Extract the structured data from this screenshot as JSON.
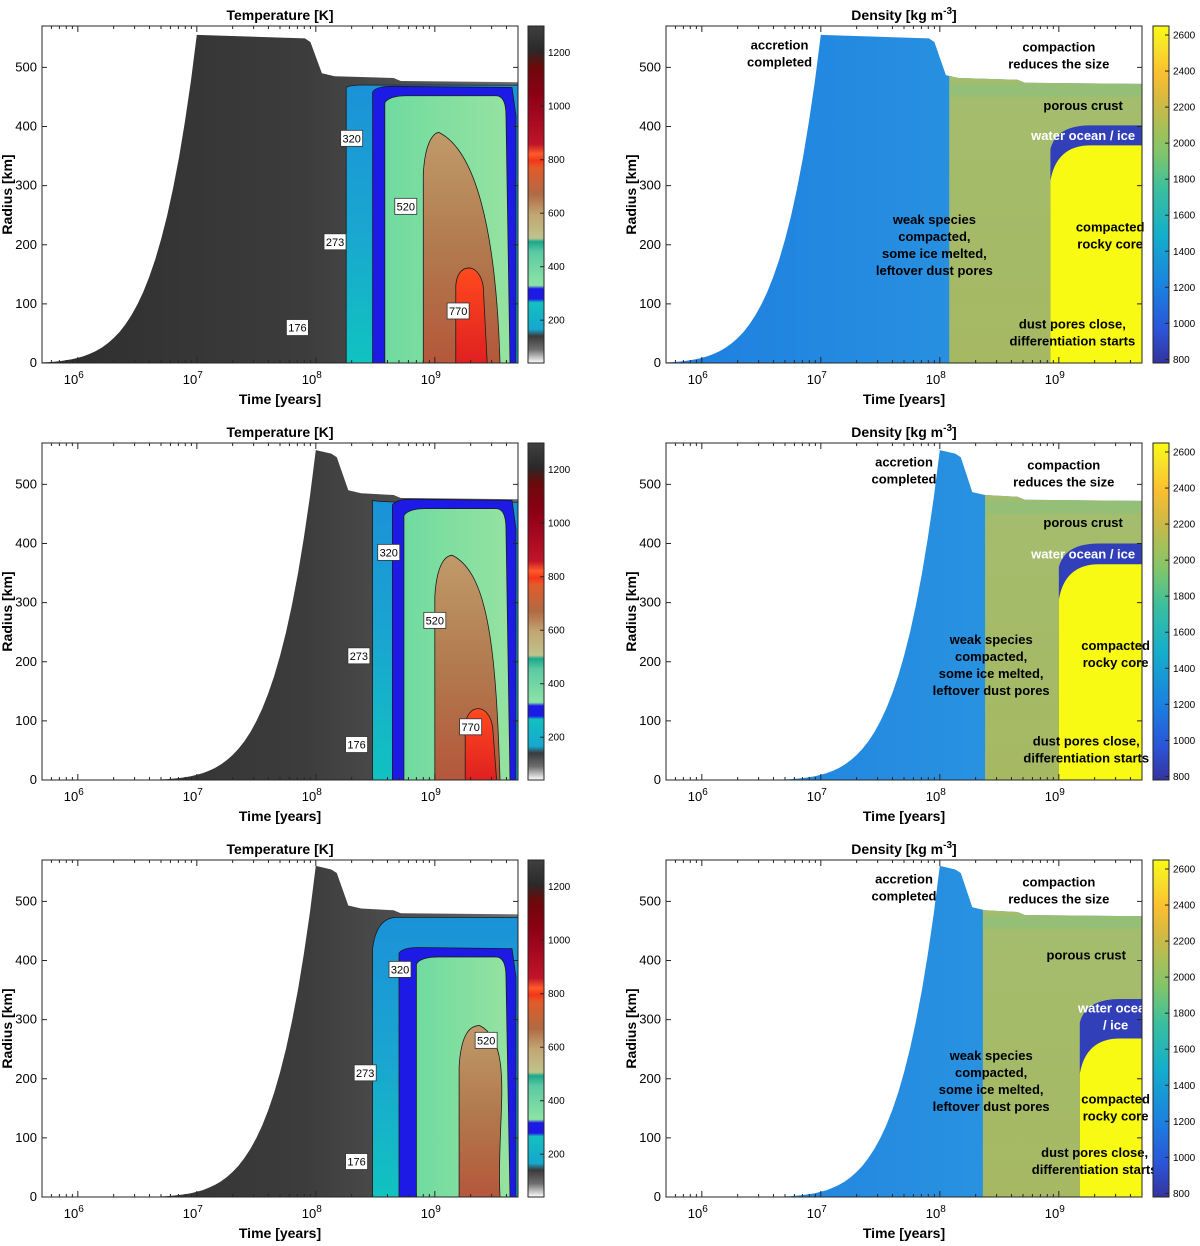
{
  "colors": {
    "density_core": "#f9fa14",
    "density_ocean": "#3140b8",
    "density_body": "#a4bd6c",
    "density_acc": "#1b78d8",
    "density_crust": "#8fc07a",
    "temp_dark": "#3a3a3a",
    "temp_cyan": "#17a7cf",
    "temp_blue": "#1d1ae6",
    "temp_green": "#8de3a6",
    "temp_tan": "#c3a572",
    "temp_brown": "#b06a44",
    "temp_red": "#f5341b"
  },
  "chart_data": [
    {
      "type": "heatmap",
      "title": "Temperature [K]",
      "xlabel": "Time [years]",
      "ylabel": "Radius [km]",
      "x_scale": "log",
      "xlim": [
        500000,
        5000000000
      ],
      "ylim": [
        0,
        570
      ],
      "xticks": [
        "10",
        "10",
        "10",
        "10"
      ],
      "xtick_exponents": [
        "6",
        "7",
        "8",
        "9"
      ],
      "xtick_values": [
        1000000,
        10000000,
        100000000,
        1000000000
      ],
      "yticks": [
        0,
        100,
        200,
        300,
        400,
        500
      ],
      "colorbar": {
        "range": [
          40,
          1300
        ],
        "ticks": [
          200,
          400,
          600,
          800,
          1000,
          1200
        ]
      },
      "accretion_end_years": 10000000,
      "initial_radius_km": 555,
      "final_radius_km": 475,
      "contours": [
        {
          "label": "176",
          "label_x": 70000000.0,
          "label_y": 60
        },
        {
          "label": "273",
          "label_x": 145000000.0,
          "label_y": 205
        },
        {
          "label": "320",
          "label_x": 200000000.0,
          "label_y": 380
        },
        {
          "label": "520",
          "label_x": 570000000.0,
          "label_y": 265
        },
        {
          "label": "770",
          "label_x": 1570000000.0,
          "label_y": 88
        }
      ],
      "regions": {
        "cyan_start": 180000000.0,
        "blue_start": 300000000.0,
        "green_start": 380000000.0,
        "shell_top": 458,
        "tan_start": 800000000.0,
        "tan_top": 390,
        "brown_start": 1000000000.0,
        "red_start": 1500000000.0,
        "red_top": 170
      }
    },
    {
      "type": "heatmap",
      "title": "Density [kg m",
      "title_exponent": "-3",
      "title_close": "]",
      "xlabel": "Time [years]",
      "ylabel": "Radius [km]",
      "x_scale": "log",
      "xlim": [
        500000,
        5000000000
      ],
      "ylim": [
        0,
        570
      ],
      "xticks": [
        "10",
        "10",
        "10",
        "10"
      ],
      "xtick_exponents": [
        "6",
        "7",
        "8",
        "9"
      ],
      "xtick_values": [
        1000000,
        10000000,
        100000000,
        1000000000
      ],
      "yticks": [
        0,
        100,
        200,
        300,
        400,
        500
      ],
      "colorbar": {
        "range": [
          780,
          2650
        ],
        "ticks": [
          800,
          1000,
          1200,
          1400,
          1600,
          1800,
          2000,
          2200,
          2400,
          2600
        ]
      },
      "accretion_end_years": 10000000,
      "initial_radius_km": 555,
      "final_radius_km": 472,
      "compaction_years": 120000000.0,
      "core_start_years": 850000000.0,
      "core_top_km": 368,
      "ocean_top_km": 402,
      "annotations": [
        {
          "lines": [
            "accretion",
            "completed"
          ],
          "x": 4500000.0,
          "y": 530
        },
        {
          "lines": [
            "compaction",
            "reduces the size"
          ],
          "x": 1000000000.0,
          "y": 527
        },
        {
          "lines": [
            "porous crust"
          ],
          "x": 1600000000.0,
          "y": 428
        },
        {
          "lines": [
            "water ocean / ice"
          ],
          "x": 1600000000.0,
          "y": 377,
          "white": true
        },
        {
          "lines": [
            "weak species",
            "compacted,",
            "some ice melted,",
            "leftover dust pores"
          ],
          "x": 90000000.0,
          "y": 235
        },
        {
          "lines": [
            "compacted",
            "rocky core"
          ],
          "x": 2700000000.0,
          "y": 222
        },
        {
          "lines": [
            "dust pores close,",
            "differentiation starts"
          ],
          "x": 1300000000.0,
          "y": 58
        }
      ]
    },
    {
      "type": "heatmap",
      "title": "Temperature [K]",
      "xlabel": "Time [years]",
      "ylabel": "Radius [km]",
      "x_scale": "log",
      "xlim": [
        500000,
        5000000000
      ],
      "ylim": [
        0,
        570
      ],
      "xticks": [
        "10",
        "10",
        "10",
        "10"
      ],
      "xtick_exponents": [
        "6",
        "7",
        "8",
        "9"
      ],
      "xtick_values": [
        1000000,
        10000000,
        100000000,
        1000000000
      ],
      "yticks": [
        0,
        100,
        200,
        300,
        400,
        500
      ],
      "colorbar": {
        "range": [
          40,
          1300
        ],
        "ticks": [
          200,
          400,
          600,
          800,
          1000,
          1200
        ]
      },
      "accretion_end_years": 100000000,
      "initial_radius_km": 558,
      "final_radius_km": 475,
      "contours": [
        {
          "label": "176",
          "label_x": 220000000.0,
          "label_y": 60
        },
        {
          "label": "273",
          "label_x": 230000000.0,
          "label_y": 210
        },
        {
          "label": "320",
          "label_x": 410000000.0,
          "label_y": 385
        },
        {
          "label": "520",
          "label_x": 1000000000.0,
          "label_y": 270
        },
        {
          "label": "770",
          "label_x": 2000000000.0,
          "label_y": 90
        }
      ],
      "regions": {
        "cyan_start": 300000000.0,
        "blue_start": 440000000.0,
        "green_start": 550000000.0,
        "shell_top": 465,
        "tan_start": 1000000000.0,
        "tan_top": 380,
        "brown_start": 1300000000.0,
        "red_start": 1800000000.0,
        "red_top": 130
      }
    },
    {
      "type": "heatmap",
      "title": "Density [kg m",
      "title_exponent": "-3",
      "title_close": "]",
      "xlabel": "Time [years]",
      "ylabel": "Radius [km]",
      "x_scale": "log",
      "xlim": [
        500000,
        5000000000
      ],
      "ylim": [
        0,
        570
      ],
      "xticks": [
        "10",
        "10",
        "10",
        "10"
      ],
      "xtick_exponents": [
        "6",
        "7",
        "8",
        "9"
      ],
      "xtick_values": [
        1000000,
        10000000,
        100000000,
        1000000000
      ],
      "yticks": [
        0,
        100,
        200,
        300,
        400,
        500
      ],
      "colorbar": {
        "range": [
          780,
          2650
        ],
        "ticks": [
          800,
          1000,
          1200,
          1400,
          1600,
          1800,
          2000,
          2200,
          2400,
          2600
        ]
      },
      "accretion_end_years": 100000000,
      "initial_radius_km": 558,
      "final_radius_km": 472,
      "compaction_years": 240000000.0,
      "core_start_years": 1000000000.0,
      "core_top_km": 365,
      "ocean_top_km": 400,
      "annotations": [
        {
          "lines": [
            "accretion",
            "completed"
          ],
          "x": 50000000.0,
          "y": 530
        },
        {
          "lines": [
            "compaction",
            "reduces the size"
          ],
          "x": 1100000000.0,
          "y": 525
        },
        {
          "lines": [
            "porous crust"
          ],
          "x": 1600000000.0,
          "y": 428
        },
        {
          "lines": [
            "water ocean / ice"
          ],
          "x": 1600000000.0,
          "y": 375,
          "white": true
        },
        {
          "lines": [
            "weak species",
            "compacted,",
            "some ice melted,",
            "leftover dust pores"
          ],
          "x": 270000000.0,
          "y": 230
        },
        {
          "lines": [
            "compacted",
            "rocky core"
          ],
          "x": 3000000000.0,
          "y": 220
        },
        {
          "lines": [
            "dust pores close,",
            "differentiation starts"
          ],
          "x": 1700000000.0,
          "y": 58
        }
      ]
    },
    {
      "type": "heatmap",
      "title": "Temperature [K]",
      "xlabel": "Time [years]",
      "ylabel": "Radius [km]",
      "x_scale": "log",
      "xlim": [
        500000,
        5000000000
      ],
      "ylim": [
        0,
        570
      ],
      "xticks": [
        "10",
        "10",
        "10",
        "10"
      ],
      "xtick_exponents": [
        "6",
        "7",
        "8",
        "9"
      ],
      "xtick_values": [
        1000000,
        10000000,
        100000000,
        1000000000
      ],
      "yticks": [
        0,
        100,
        200,
        300,
        400,
        500
      ],
      "colorbar": {
        "range": [
          40,
          1300
        ],
        "ticks": [
          200,
          400,
          600,
          800,
          1000,
          1200
        ]
      },
      "accretion_end_years": 100000000,
      "initial_radius_km": 560,
      "final_radius_km": 478,
      "contours": [
        {
          "label": "176",
          "label_x": 220000000.0,
          "label_y": 60
        },
        {
          "label": "273",
          "label_x": 260000000.0,
          "label_y": 210
        },
        {
          "label": "320",
          "label_x": 510000000.0,
          "label_y": 385
        },
        {
          "label": "520",
          "label_x": 2700000000.0,
          "label_y": 265
        }
      ],
      "regions": {
        "cyan_start": 300000000.0,
        "blue_start": 500000000.0,
        "green_start": 700000000.0,
        "shell_top": 412,
        "tan_start": 1600000000.0,
        "tan_top": 290,
        "brown_start": 2200000000.0,
        "red_start": 0,
        "red_top": 0
      }
    },
    {
      "type": "heatmap",
      "title": "Density [kg m",
      "title_exponent": "-3",
      "title_close": "]",
      "xlabel": "Time [years]",
      "ylabel": "Radius [km]",
      "x_scale": "log",
      "xlim": [
        500000,
        5000000000
      ],
      "ylim": [
        0,
        570
      ],
      "xticks": [
        "10",
        "10",
        "10",
        "10"
      ],
      "xtick_exponents": [
        "6",
        "7",
        "8",
        "9"
      ],
      "xtick_values": [
        1000000,
        10000000,
        100000000,
        1000000000
      ],
      "yticks": [
        0,
        100,
        200,
        300,
        400,
        500
      ],
      "colorbar": {
        "range": [
          780,
          2650
        ],
        "ticks": [
          800,
          1000,
          1200,
          1400,
          1600,
          1800,
          2000,
          2200,
          2400,
          2600
        ]
      },
      "accretion_end_years": 100000000,
      "initial_radius_km": 560,
      "final_radius_km": 475,
      "compaction_years": 230000000.0,
      "core_start_years": 1500000000.0,
      "core_top_km": 268,
      "ocean_top_km": 335,
      "annotations": [
        {
          "lines": [
            "accretion",
            "completed"
          ],
          "x": 50000000.0,
          "y": 530
        },
        {
          "lines": [
            "compaction",
            "reduces the size"
          ],
          "x": 1000000000.0,
          "y": 525
        },
        {
          "lines": [
            "porous crust"
          ],
          "x": 1700000000.0,
          "y": 402
        },
        {
          "lines": [
            "water ocean",
            "/ ice"
          ],
          "x": 3000000000.0,
          "y": 312,
          "white": true
        },
        {
          "lines": [
            "weak species",
            "compacted,",
            "some ice melted,",
            "leftover dust pores"
          ],
          "x": 270000000.0,
          "y": 232
        },
        {
          "lines": [
            "compacted",
            "rocky core"
          ],
          "x": 3000000000.0,
          "y": 158
        },
        {
          "lines": [
            "dust pores close,",
            "differentiation starts"
          ],
          "x": 2000000000.0,
          "y": 68
        }
      ]
    }
  ]
}
